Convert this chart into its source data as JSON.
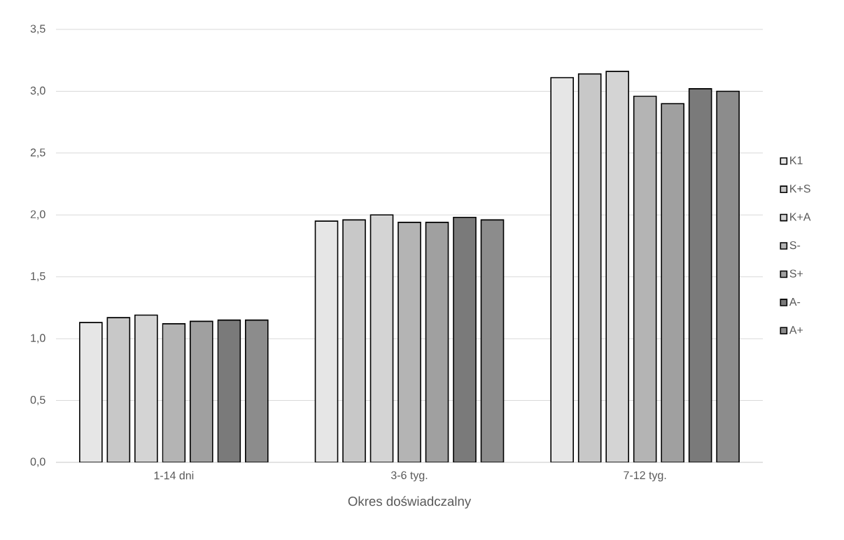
{
  "chart_data": {
    "type": "bar",
    "xlabel": "Okres doświadczalny",
    "categories": [
      "1-14 dni",
      "3-6 tyg.",
      "7-12 tyg."
    ],
    "series": [
      {
        "name": "K1",
        "color": "#e6e6e6",
        "values": [
          1.13,
          1.95,
          3.11
        ]
      },
      {
        "name": "K+S",
        "color": "#c8c8c8",
        "values": [
          1.17,
          1.96,
          3.14
        ]
      },
      {
        "name": "K+A",
        "color": "#d4d4d4",
        "values": [
          1.19,
          2.0,
          3.16
        ]
      },
      {
        "name": "S-",
        "color": "#b4b4b4",
        "values": [
          1.12,
          1.94,
          2.96
        ]
      },
      {
        "name": "S+",
        "color": "#a0a0a0",
        "values": [
          1.14,
          1.94,
          2.9
        ]
      },
      {
        "name": "A-",
        "color": "#7a7a7a",
        "values": [
          1.15,
          1.98,
          3.02
        ]
      },
      {
        "name": "A+",
        "color": "#8c8c8c",
        "values": [
          1.15,
          1.96,
          3.0
        ]
      }
    ],
    "ylim": [
      0,
      3.5
    ],
    "yticks": [
      {
        "value": 0,
        "label": "0,0"
      },
      {
        "value": 0.5,
        "label": "0,5"
      },
      {
        "value": 1,
        "label": "1,0"
      },
      {
        "value": 1.5,
        "label": "1,5"
      },
      {
        "value": 2,
        "label": "2,0"
      },
      {
        "value": 2.5,
        "label": "2,5"
      },
      {
        "value": 3,
        "label": "3,0"
      },
      {
        "value": 3.5,
        "label": "3,5"
      }
    ],
    "grid": "y",
    "legend": "right"
  }
}
